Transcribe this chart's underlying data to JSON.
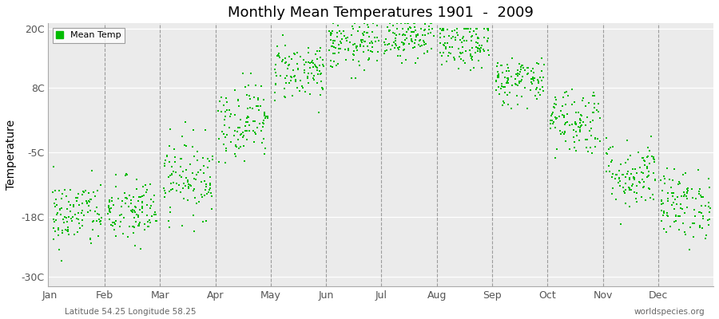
{
  "title": "Monthly Mean Temperatures 1901  -  2009",
  "ylabel": "Temperature",
  "xlabel_months": [
    "Jan",
    "Feb",
    "Mar",
    "Apr",
    "May",
    "Jun",
    "Jul",
    "Aug",
    "Sep",
    "Oct",
    "Nov",
    "Dec"
  ],
  "subtitle": "Latitude 54.25 Longitude 58.25",
  "watermark": "worldspecies.org",
  "yticks": [
    20,
    8,
    -5,
    -18,
    -30
  ],
  "ytick_labels": [
    "20C",
    "8C",
    "-5C",
    "-18C",
    "-30C"
  ],
  "ylim": [
    -32,
    21
  ],
  "dot_color": "#00bb00",
  "bg_color": "#ebebeb",
  "outer_bg": "#ffffff",
  "legend_label": "Mean Temp",
  "n_years": 109,
  "monthly_means": [
    -17.5,
    -17.0,
    -10.0,
    1.5,
    11.5,
    16.5,
    18.5,
    16.5,
    9.5,
    1.5,
    -9.5,
    -15.5
  ],
  "monthly_stds": [
    3.5,
    3.5,
    4.0,
    4.0,
    3.0,
    2.5,
    2.5,
    2.5,
    2.5,
    3.5,
    3.5,
    3.5
  ],
  "monthly_mins": [
    -31,
    -30,
    -24,
    -7,
    3,
    10,
    13,
    10,
    3,
    -8,
    -22,
    -27
  ],
  "monthly_maxs": [
    -6,
    -5,
    2,
    11,
    19,
    21,
    21,
    20,
    15,
    9,
    1,
    -4
  ],
  "dot_size": 3,
  "title_fontsize": 13,
  "tick_fontsize": 9,
  "ylabel_fontsize": 10
}
